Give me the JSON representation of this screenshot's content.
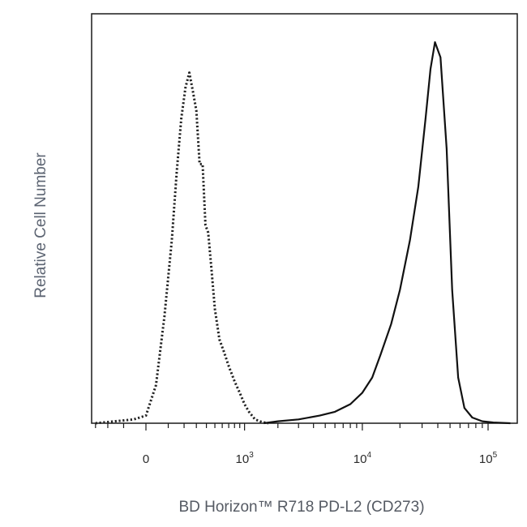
{
  "chart_data": {
    "type": "line",
    "title": "",
    "xlabel": "BD Horizon™ R718 PD-L2 (CD273)",
    "ylabel": "Relative Cell Number",
    "x_scale": "logicle",
    "xlim": [
      -600,
      200000
    ],
    "ylim": [
      0,
      100
    ],
    "grid": false,
    "legend": "none",
    "x_tick_labels": [
      {
        "value": 0,
        "base": "0",
        "exp": ""
      },
      {
        "value": 1000,
        "base": "10",
        "exp": "3"
      },
      {
        "value": 10000,
        "base": "10",
        "exp": "4"
      },
      {
        "value": 100000,
        "base": "10",
        "exp": "5"
      }
    ],
    "series": [
      {
        "style": "dotted",
        "color": "#222222",
        "x": [
          -300,
          -150,
          -50,
          0,
          40,
          80,
          120,
          150,
          180,
          210,
          240,
          270,
          300,
          330,
          360,
          390,
          420,
          460,
          500,
          560,
          620,
          700,
          800,
          900,
          1000,
          1100,
          1250,
          1450,
          1650
        ],
        "y": [
          0,
          0.5,
          1,
          2,
          10,
          28,
          48,
          66,
          80,
          88,
          92,
          87,
          82,
          68,
          68,
          52,
          50,
          40,
          30,
          22,
          19,
          15,
          11,
          8,
          5,
          3,
          1,
          0.3,
          0
        ]
      },
      {
        "style": "solid",
        "color": "#111111",
        "x": [
          1500,
          2000,
          3000,
          4500,
          6000,
          8000,
          10000,
          12000,
          14000,
          17000,
          20000,
          24000,
          28000,
          32000,
          35000,
          38000,
          42000,
          47000,
          52000,
          58000,
          65000,
          75000,
          90000,
          110000,
          150000
        ],
        "y": [
          0,
          0.5,
          1,
          2,
          3,
          5,
          8,
          12,
          18,
          26,
          35,
          48,
          62,
          80,
          93,
          100,
          96,
          72,
          35,
          12,
          4,
          1.5,
          0.5,
          0.2,
          0
        ]
      }
    ]
  }
}
